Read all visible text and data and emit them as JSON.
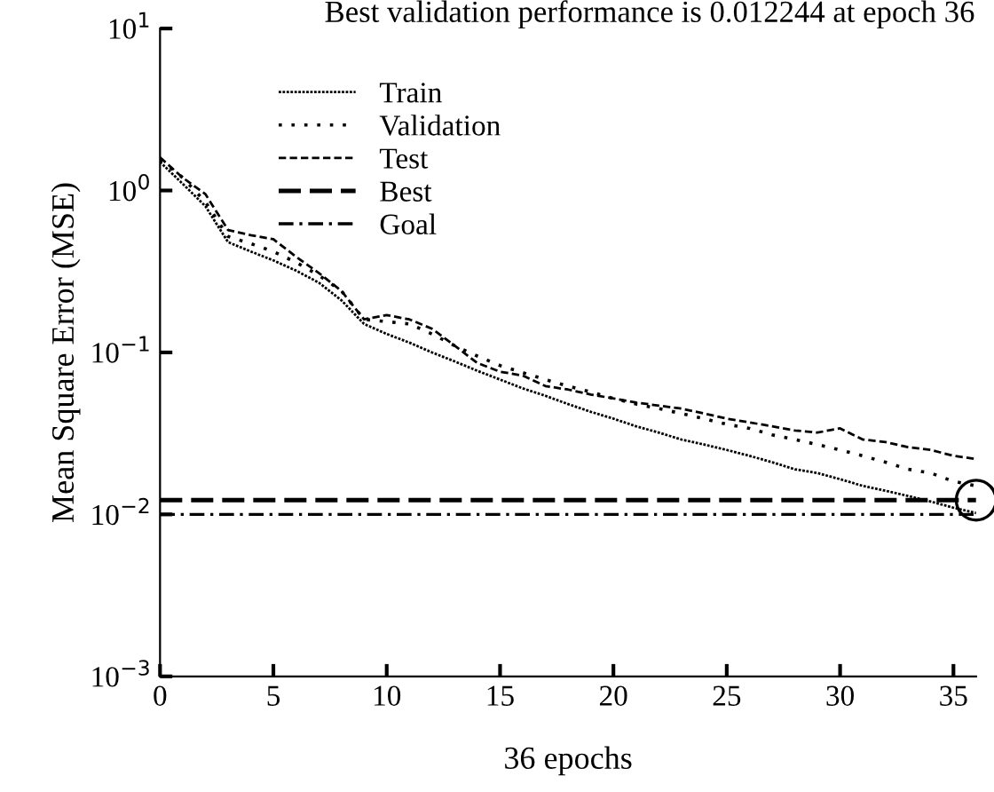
{
  "chart_data": {
    "type": "line",
    "title": "Best validation performance is 0.012244 at epoch 36",
    "xlabel": "36 epochs",
    "ylabel": "Mean Square Error (MSE)",
    "log": "y",
    "x": [
      0,
      1,
      2,
      3,
      4,
      5,
      6,
      7,
      8,
      9,
      10,
      11,
      12,
      13,
      14,
      15,
      16,
      17,
      18,
      19,
      20,
      21,
      22,
      23,
      24,
      25,
      26,
      27,
      28,
      29,
      30,
      31,
      32,
      33,
      34,
      35,
      36
    ],
    "series": [
      {
        "name": "Train",
        "color": "#000000",
        "line_style": "dotted",
        "values": [
          1.5,
          1.1,
          0.8,
          0.48,
          0.42,
          0.37,
          0.32,
          0.27,
          0.21,
          0.15,
          0.13,
          0.115,
          0.1,
          0.088,
          0.077,
          0.068,
          0.06,
          0.054,
          0.048,
          0.043,
          0.039,
          0.035,
          0.032,
          0.029,
          0.027,
          0.025,
          0.023,
          0.021,
          0.019,
          0.018,
          0.0165,
          0.015,
          0.014,
          0.013,
          0.012,
          0.011,
          0.0102
        ]
      },
      {
        "name": "Validation",
        "color": "#000000",
        "line_style": "sparse dotted",
        "values": [
          1.55,
          1.2,
          0.85,
          0.52,
          0.47,
          0.42,
          0.36,
          0.3,
          0.24,
          0.16,
          0.155,
          0.15,
          0.13,
          0.11,
          0.095,
          0.083,
          0.075,
          0.068,
          0.062,
          0.057,
          0.052,
          0.048,
          0.045,
          0.042,
          0.039,
          0.036,
          0.034,
          0.031,
          0.029,
          0.027,
          0.025,
          0.023,
          0.021,
          0.019,
          0.018,
          0.016,
          0.015
        ]
      },
      {
        "name": "Test",
        "color": "#000000",
        "line_style": "dashed",
        "values": [
          1.6,
          1.2,
          0.95,
          0.57,
          0.53,
          0.5,
          0.39,
          0.31,
          0.24,
          0.16,
          0.17,
          0.16,
          0.14,
          0.11,
          0.086,
          0.076,
          0.072,
          0.062,
          0.059,
          0.055,
          0.052,
          0.049,
          0.047,
          0.045,
          0.042,
          0.039,
          0.037,
          0.035,
          0.033,
          0.032,
          0.034,
          0.029,
          0.028,
          0.026,
          0.025,
          0.023,
          0.022
        ]
      },
      {
        "type": "scatter",
        "marker": "circle",
        "color": "#000000",
        "x": [
          36
        ],
        "values": [
          0.012244
        ]
      }
    ],
    "ref_lines": [
      {
        "axis": "y",
        "value": 0.012244,
        "label": "Best",
        "color": "#000000",
        "line_style": "long dashed"
      },
      {
        "axis": "y",
        "value": 0.01,
        "label": "Goal",
        "color": "#000000",
        "line_style": "dashdot"
      }
    ],
    "xlim": [
      0,
      36
    ],
    "xticks": [
      0,
      5,
      10,
      15,
      20,
      25,
      30,
      35
    ],
    "ylim": [
      0.001,
      10
    ],
    "yticks": [
      {
        "value": 0.001,
        "label": "10$^{−3}$"
      },
      {
        "value": 0.01,
        "label": "10$^{−2}$"
      },
      {
        "value": 0.1,
        "label": "10$^{−1}$"
      },
      {
        "value": 1,
        "label": "10$^{0}$"
      },
      {
        "value": 10,
        "label": "10$^{1}$"
      }
    ],
    "legend": "top left",
    "grid": false
  }
}
